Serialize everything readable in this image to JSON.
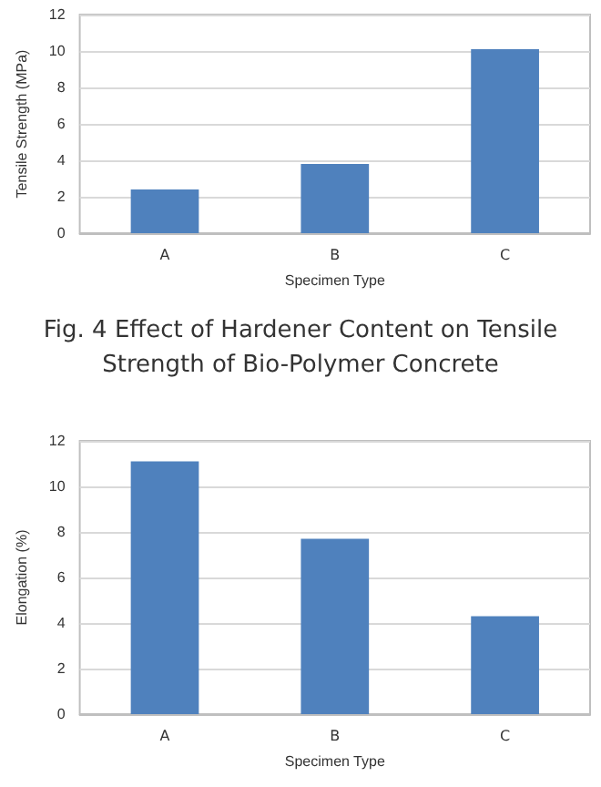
{
  "chart_data": [
    {
      "type": "bar",
      "categories": [
        "A",
        "B",
        "C"
      ],
      "values": [
        2.4,
        3.8,
        10.1
      ],
      "color": "#4f81bd",
      "xlabel": "Specimen Type",
      "ylabel": "Tensile Strength (MPa)",
      "ylim": [
        0,
        12
      ],
      "yticks": [
        0,
        2,
        4,
        6,
        8,
        10,
        12
      ],
      "grid": "y",
      "annotations": [
        "Fig. 4 Effect of Hardener Content on Tensile Strength of Bio-Polymer Concrete"
      ]
    },
    {
      "type": "bar",
      "categories": [
        "A",
        "B",
        "C"
      ],
      "values": [
        11.1,
        7.7,
        4.3
      ],
      "color": "#4f81bd",
      "xlabel": "Specimen Type",
      "ylabel": "Elongation (%)",
      "ylim": [
        0,
        12
      ],
      "yticks": [
        0,
        2,
        4,
        6,
        8,
        10,
        12
      ],
      "grid": "y"
    }
  ]
}
